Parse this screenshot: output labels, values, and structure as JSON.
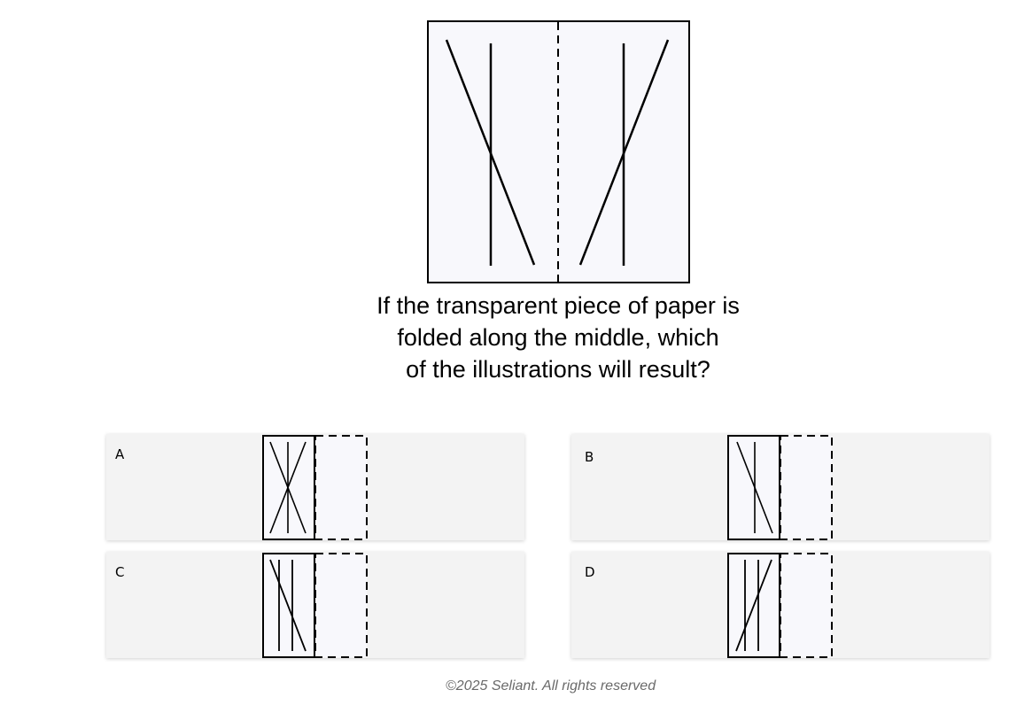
{
  "question": {
    "lines": [
      "If the transparent piece of paper is",
      "folded along the middle, which",
      "of the illustrations will result?"
    ]
  },
  "options": [
    {
      "letter": "A"
    },
    {
      "letter": "B"
    },
    {
      "letter": "C"
    },
    {
      "letter": "D"
    }
  ],
  "footer": "©2025 Seliant. All rights reserved",
  "colors": {
    "paper": "#f8f8fc",
    "option_background": "#f3f3f3",
    "ink": "#000000",
    "footer_text": "#6a6a6a"
  }
}
